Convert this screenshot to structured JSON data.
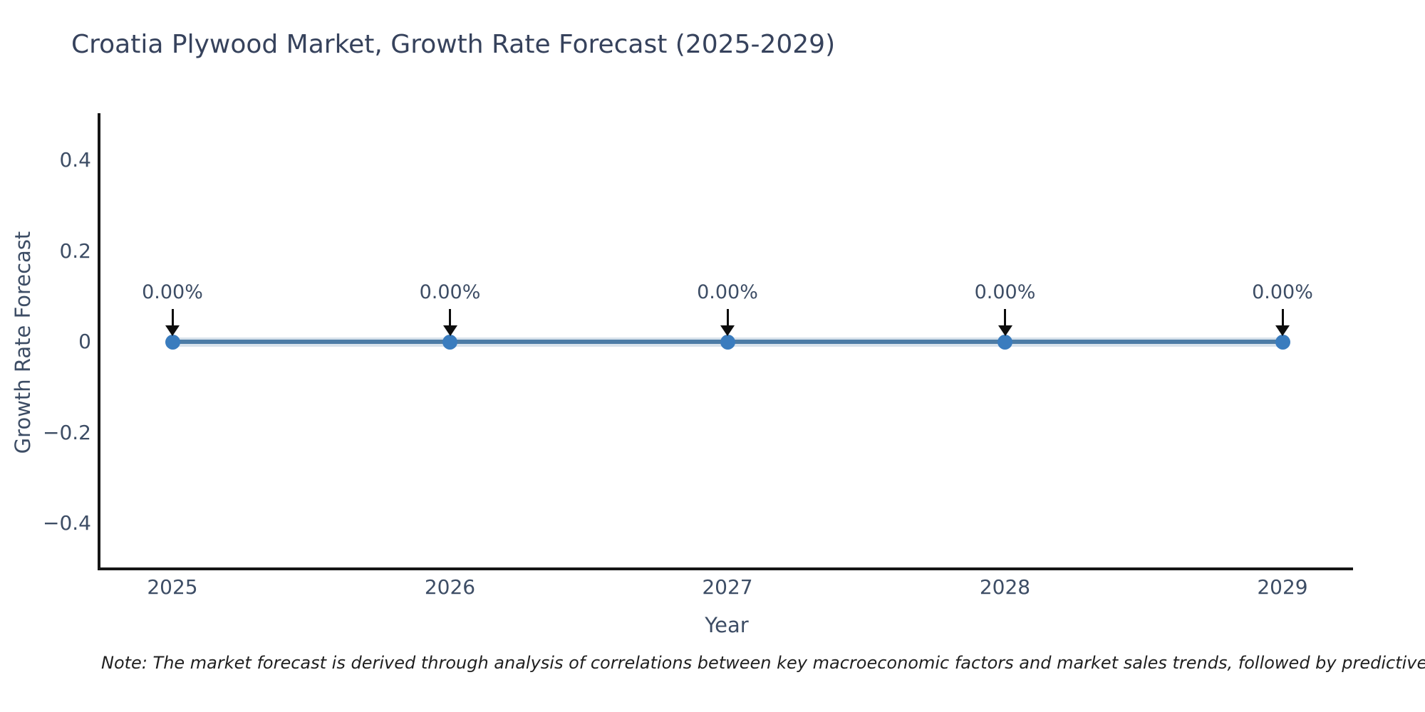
{
  "title": "Croatia Plywood Market, Growth Rate Forecast (2025-2029)",
  "note": "Note: The market forecast is derived through analysis of correlations between key macroeconomic factors and market sales trends, followed by predictive modeling to project future sales.",
  "colors": {
    "text": "#3d4d65",
    "title_text": "#36425c",
    "axis_spine": "#161616",
    "line": "#4c7ca6",
    "line_halo": "rgba(79,124,166,0.22)",
    "marker": "#3a7cbe",
    "arrow": "#0d0d0d",
    "background": "#ffffff"
  },
  "chart_data": {
    "type": "line",
    "title": "Croatia Plywood Market, Growth Rate Forecast (2025-2029)",
    "xlabel": "Year",
    "ylabel": "Growth Rate Forecast",
    "x": [
      2025,
      2026,
      2027,
      2028,
      2029
    ],
    "values": [
      0,
      0,
      0,
      0,
      0
    ],
    "point_labels": [
      "0.00%",
      "0.00%",
      "0.00%",
      "0.00%",
      "0.00%"
    ],
    "xtick_labels": [
      "2025",
      "2026",
      "2027",
      "2028",
      "2029"
    ],
    "yticks": [
      {
        "value": 0.4,
        "label": "0.4"
      },
      {
        "value": 0.2,
        "label": "0.2"
      },
      {
        "value": 0,
        "label": "0"
      },
      {
        "value": -0.2,
        "label": "−0.2"
      },
      {
        "value": -0.4,
        "label": "−0.4"
      }
    ],
    "ylim": [
      -0.5,
      0.5
    ],
    "grid": false,
    "legend": "none",
    "marker_style": "circle",
    "annotation_arrows": true
  }
}
